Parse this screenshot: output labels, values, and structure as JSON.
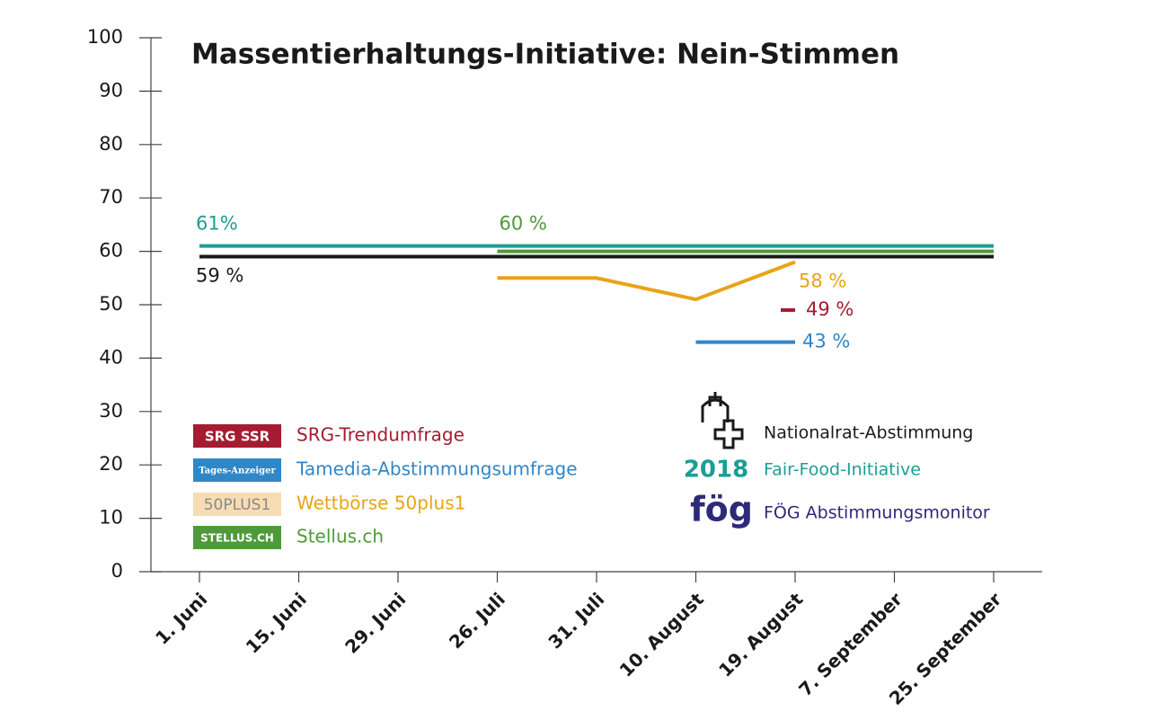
{
  "chart_data": {
    "type": "line",
    "title": "Massentierhaltungs-Initiative: Nein-Stimmen",
    "categories": [
      "1. Juni",
      "15. Juni",
      "29. Juni",
      "26. Juli",
      "31. Juli",
      "10. August",
      "19. August",
      "7. September",
      "25. September"
    ],
    "ylim": [
      0,
      100
    ],
    "yticks": [
      0,
      10,
      20,
      30,
      40,
      50,
      60,
      70,
      80,
      90,
      100
    ],
    "series": [
      {
        "name": "SRG-Trendumfrage",
        "badge": "SRG SSR",
        "color": "#a51c30",
        "values": [
          null,
          null,
          null,
          null,
          null,
          null,
          49,
          null,
          null
        ],
        "value_labels": [
          null,
          null,
          null,
          null,
          null,
          null,
          "49 %",
          null,
          null
        ]
      },
      {
        "name": "Tamedia-Abstimmungsumfrage",
        "badge": "Tages-Anzeiger",
        "color": "#2f87c8",
        "values": [
          null,
          null,
          null,
          null,
          null,
          43,
          43,
          null,
          null
        ],
        "value_labels": [
          null,
          null,
          null,
          null,
          null,
          null,
          "43 %",
          null,
          null
        ]
      },
      {
        "name": "Wettbörse 50plus1",
        "badge": "50PLUS1",
        "color": "#e8a317",
        "values": [
          null,
          null,
          null,
          55,
          55,
          51,
          58,
          null,
          null
        ],
        "value_labels": [
          null,
          null,
          null,
          null,
          null,
          null,
          "58 %",
          null,
          null
        ]
      },
      {
        "name": "Stellus.ch",
        "badge": "STELLUS.CH",
        "color": "#4e9a3a",
        "values": [
          null,
          null,
          null,
          60,
          60,
          60,
          60,
          60,
          60
        ],
        "value_labels": [
          null,
          null,
          null,
          "60 %",
          null,
          null,
          null,
          null,
          null
        ]
      },
      {
        "name": "Nationalrat-Abstimmung",
        "color": "#1a1a1a",
        "values": [
          59,
          59,
          59,
          59,
          59,
          59,
          59,
          59,
          59
        ],
        "value_labels": [
          "59 %",
          null,
          null,
          null,
          null,
          null,
          null,
          null,
          null
        ]
      },
      {
        "name": "Fair-Food-Initiative",
        "badge": "2018",
        "color": "#1a9e94",
        "values": [
          61,
          61,
          61,
          61,
          61,
          61,
          61,
          61,
          61
        ],
        "value_labels": [
          "61%",
          null,
          null,
          null,
          null,
          null,
          null,
          null,
          null
        ]
      },
      {
        "name": "FÖG Abstimmungsmonitor",
        "badge": "fög",
        "color": "#2d2a78",
        "values": [
          null,
          null,
          null,
          null,
          null,
          null,
          null,
          null,
          null
        ],
        "value_labels": [
          null,
          null,
          null,
          null,
          null,
          null,
          null,
          null,
          null
        ]
      }
    ]
  }
}
